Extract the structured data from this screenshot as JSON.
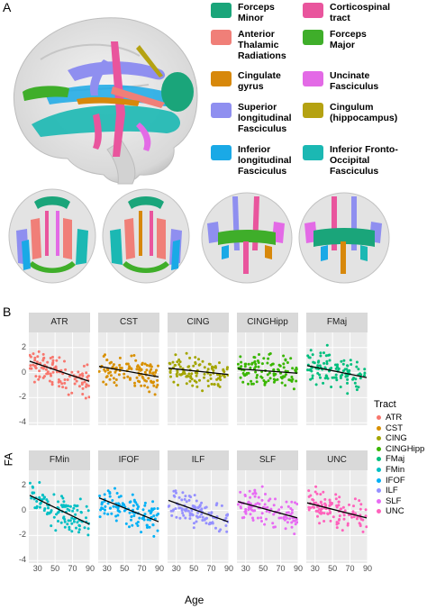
{
  "panel_a": {
    "letter": "A",
    "legend": [
      {
        "key": "forceps-minor",
        "label": "Forceps\nMinor",
        "color": "#1aa57a"
      },
      {
        "key": "corticospinal",
        "label": "Corticospinal\ntract",
        "color": "#e9559d"
      },
      {
        "key": "atr",
        "label": "Anterior\nThalamic\nRadiations",
        "color": "#f07f78"
      },
      {
        "key": "forceps-major",
        "label": "Forceps\nMajor",
        "color": "#3fae2a"
      },
      {
        "key": "cingulate",
        "label": "Cingulate\ngyrus",
        "color": "#d7880b"
      },
      {
        "key": "uncinate",
        "label": "Uncinate\nFasciculus",
        "color": "#e36ae6"
      },
      {
        "key": "slf",
        "label": "Superior\nlongitudinal\nFasciculus",
        "color": "#8f8ff0"
      },
      {
        "key": "cinghipp",
        "label": "Cingulum\n(hippocampus)",
        "color": "#b5a212"
      },
      {
        "key": "ilf",
        "label": "Inferior\nlongitudinal\nFasciculus",
        "color": "#1aa9e6"
      },
      {
        "key": "ifof",
        "label": "Inferior Fronto-\nOccipital\nFasciculus",
        "color": "#1bb8b3"
      }
    ]
  },
  "panel_b": {
    "letter": "B",
    "ylabel": "FA",
    "xlabel": "Age",
    "legend_title": "Tract"
  },
  "chart_data": {
    "type": "scatter",
    "layout": "facet 2x5",
    "xlabel": "Age",
    "ylabel": "FA",
    "xlim": [
      20,
      90
    ],
    "ylim": [
      -4.2,
      3.2
    ],
    "x_ticks": [
      30,
      50,
      70,
      90
    ],
    "y_ticks": [
      -4,
      -2,
      0,
      2
    ],
    "grid": true,
    "legend_title": "Tract",
    "legend_position": "right",
    "series": [
      {
        "name": "ATR",
        "color": "#f8766d",
        "trend": {
          "x": [
            21,
            89
          ],
          "y": [
            0.9,
            -0.7
          ]
        }
      },
      {
        "name": "CST",
        "color": "#d89000",
        "trend": {
          "x": [
            21,
            89
          ],
          "y": [
            0.5,
            -0.35
          ]
        }
      },
      {
        "name": "CING",
        "color": "#a3a500",
        "trend": {
          "x": [
            21,
            89
          ],
          "y": [
            0.35,
            -0.15
          ]
        }
      },
      {
        "name": "CINGHipp",
        "color": "#39b600",
        "trend": {
          "x": [
            21,
            89
          ],
          "y": [
            0.3,
            -0.05
          ]
        }
      },
      {
        "name": "FMaj",
        "color": "#00bf7d",
        "trend": {
          "x": [
            21,
            89
          ],
          "y": [
            0.55,
            -0.4
          ]
        }
      },
      {
        "name": "FMin",
        "color": "#00bfc4",
        "trend": {
          "x": [
            21,
            89
          ],
          "y": [
            1.2,
            -1.1
          ]
        }
      },
      {
        "name": "IFOF",
        "color": "#00b0f6",
        "trend": {
          "x": [
            21,
            89
          ],
          "y": [
            1.0,
            -0.9
          ]
        }
      },
      {
        "name": "ILF",
        "color": "#9590ff",
        "trend": {
          "x": [
            21,
            89
          ],
          "y": [
            0.8,
            -0.9
          ]
        }
      },
      {
        "name": "SLF",
        "color": "#e76bf3",
        "trend": {
          "x": [
            21,
            89
          ],
          "y": [
            0.7,
            -0.6
          ]
        }
      },
      {
        "name": "UNC",
        "color": "#ff62bc",
        "trend": {
          "x": [
            21,
            89
          ],
          "y": [
            0.6,
            -0.6
          ]
        }
      }
    ]
  }
}
